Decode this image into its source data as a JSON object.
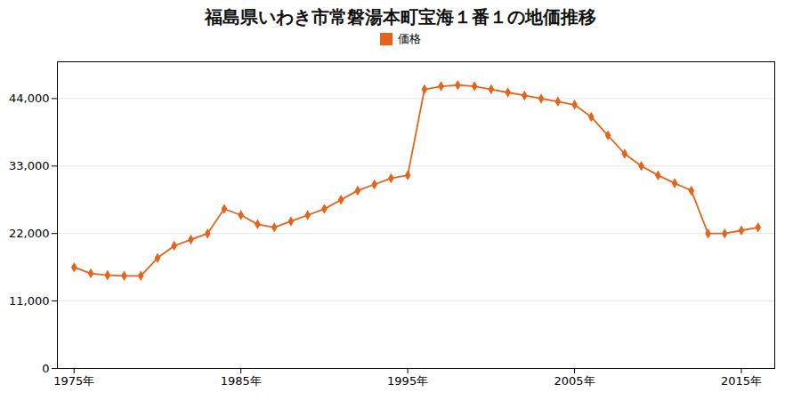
{
  "chart_data": {
    "type": "line",
    "title": "福島県いわき市常磐湯本町宝海１番１の地価推移",
    "x": [
      1975,
      1976,
      1977,
      1978,
      1979,
      1980,
      1981,
      1982,
      1983,
      1984,
      1985,
      1986,
      1987,
      1988,
      1989,
      1990,
      1991,
      1992,
      1993,
      1994,
      1995,
      1996,
      1997,
      1998,
      1999,
      2000,
      2001,
      2002,
      2003,
      2004,
      2005,
      2006,
      2007,
      2008,
      2009,
      2010,
      2011,
      2012,
      2013,
      2014,
      2015,
      2016
    ],
    "series": [
      {
        "name": "価格",
        "color": "#e8621a",
        "marker": "diamond",
        "values": [
          16500,
          15500,
          15200,
          15100,
          15100,
          18000,
          20000,
          21000,
          22000,
          26000,
          25000,
          23500,
          23000,
          24000,
          25000,
          26000,
          27500,
          29000,
          30000,
          31000,
          31500,
          45500,
          46000,
          46200,
          46000,
          45500,
          45000,
          44500,
          44000,
          43500,
          43000,
          41000,
          38000,
          35000,
          33000,
          31500,
          30200,
          29000,
          22000,
          22000,
          22500,
          23000
        ]
      }
    ],
    "xlim": [
      1974,
      2017
    ],
    "xticks": [
      {
        "value": 1975,
        "label": "1975年"
      },
      {
        "value": 1985,
        "label": "1985年"
      },
      {
        "value": 1995,
        "label": "1995年"
      },
      {
        "value": 2005,
        "label": "2005年"
      },
      {
        "value": 2015,
        "label": "2015年"
      }
    ],
    "ylim": [
      0,
      50000
    ],
    "yticks": [
      0,
      {
        "value": 11000,
        "label": "11,000"
      },
      {
        "value": 22000,
        "label": "22,000"
      },
      {
        "value": 33000,
        "label": "33,000"
      },
      {
        "value": 44000,
        "label": "44,000"
      }
    ],
    "grid": true,
    "legend": "top"
  }
}
